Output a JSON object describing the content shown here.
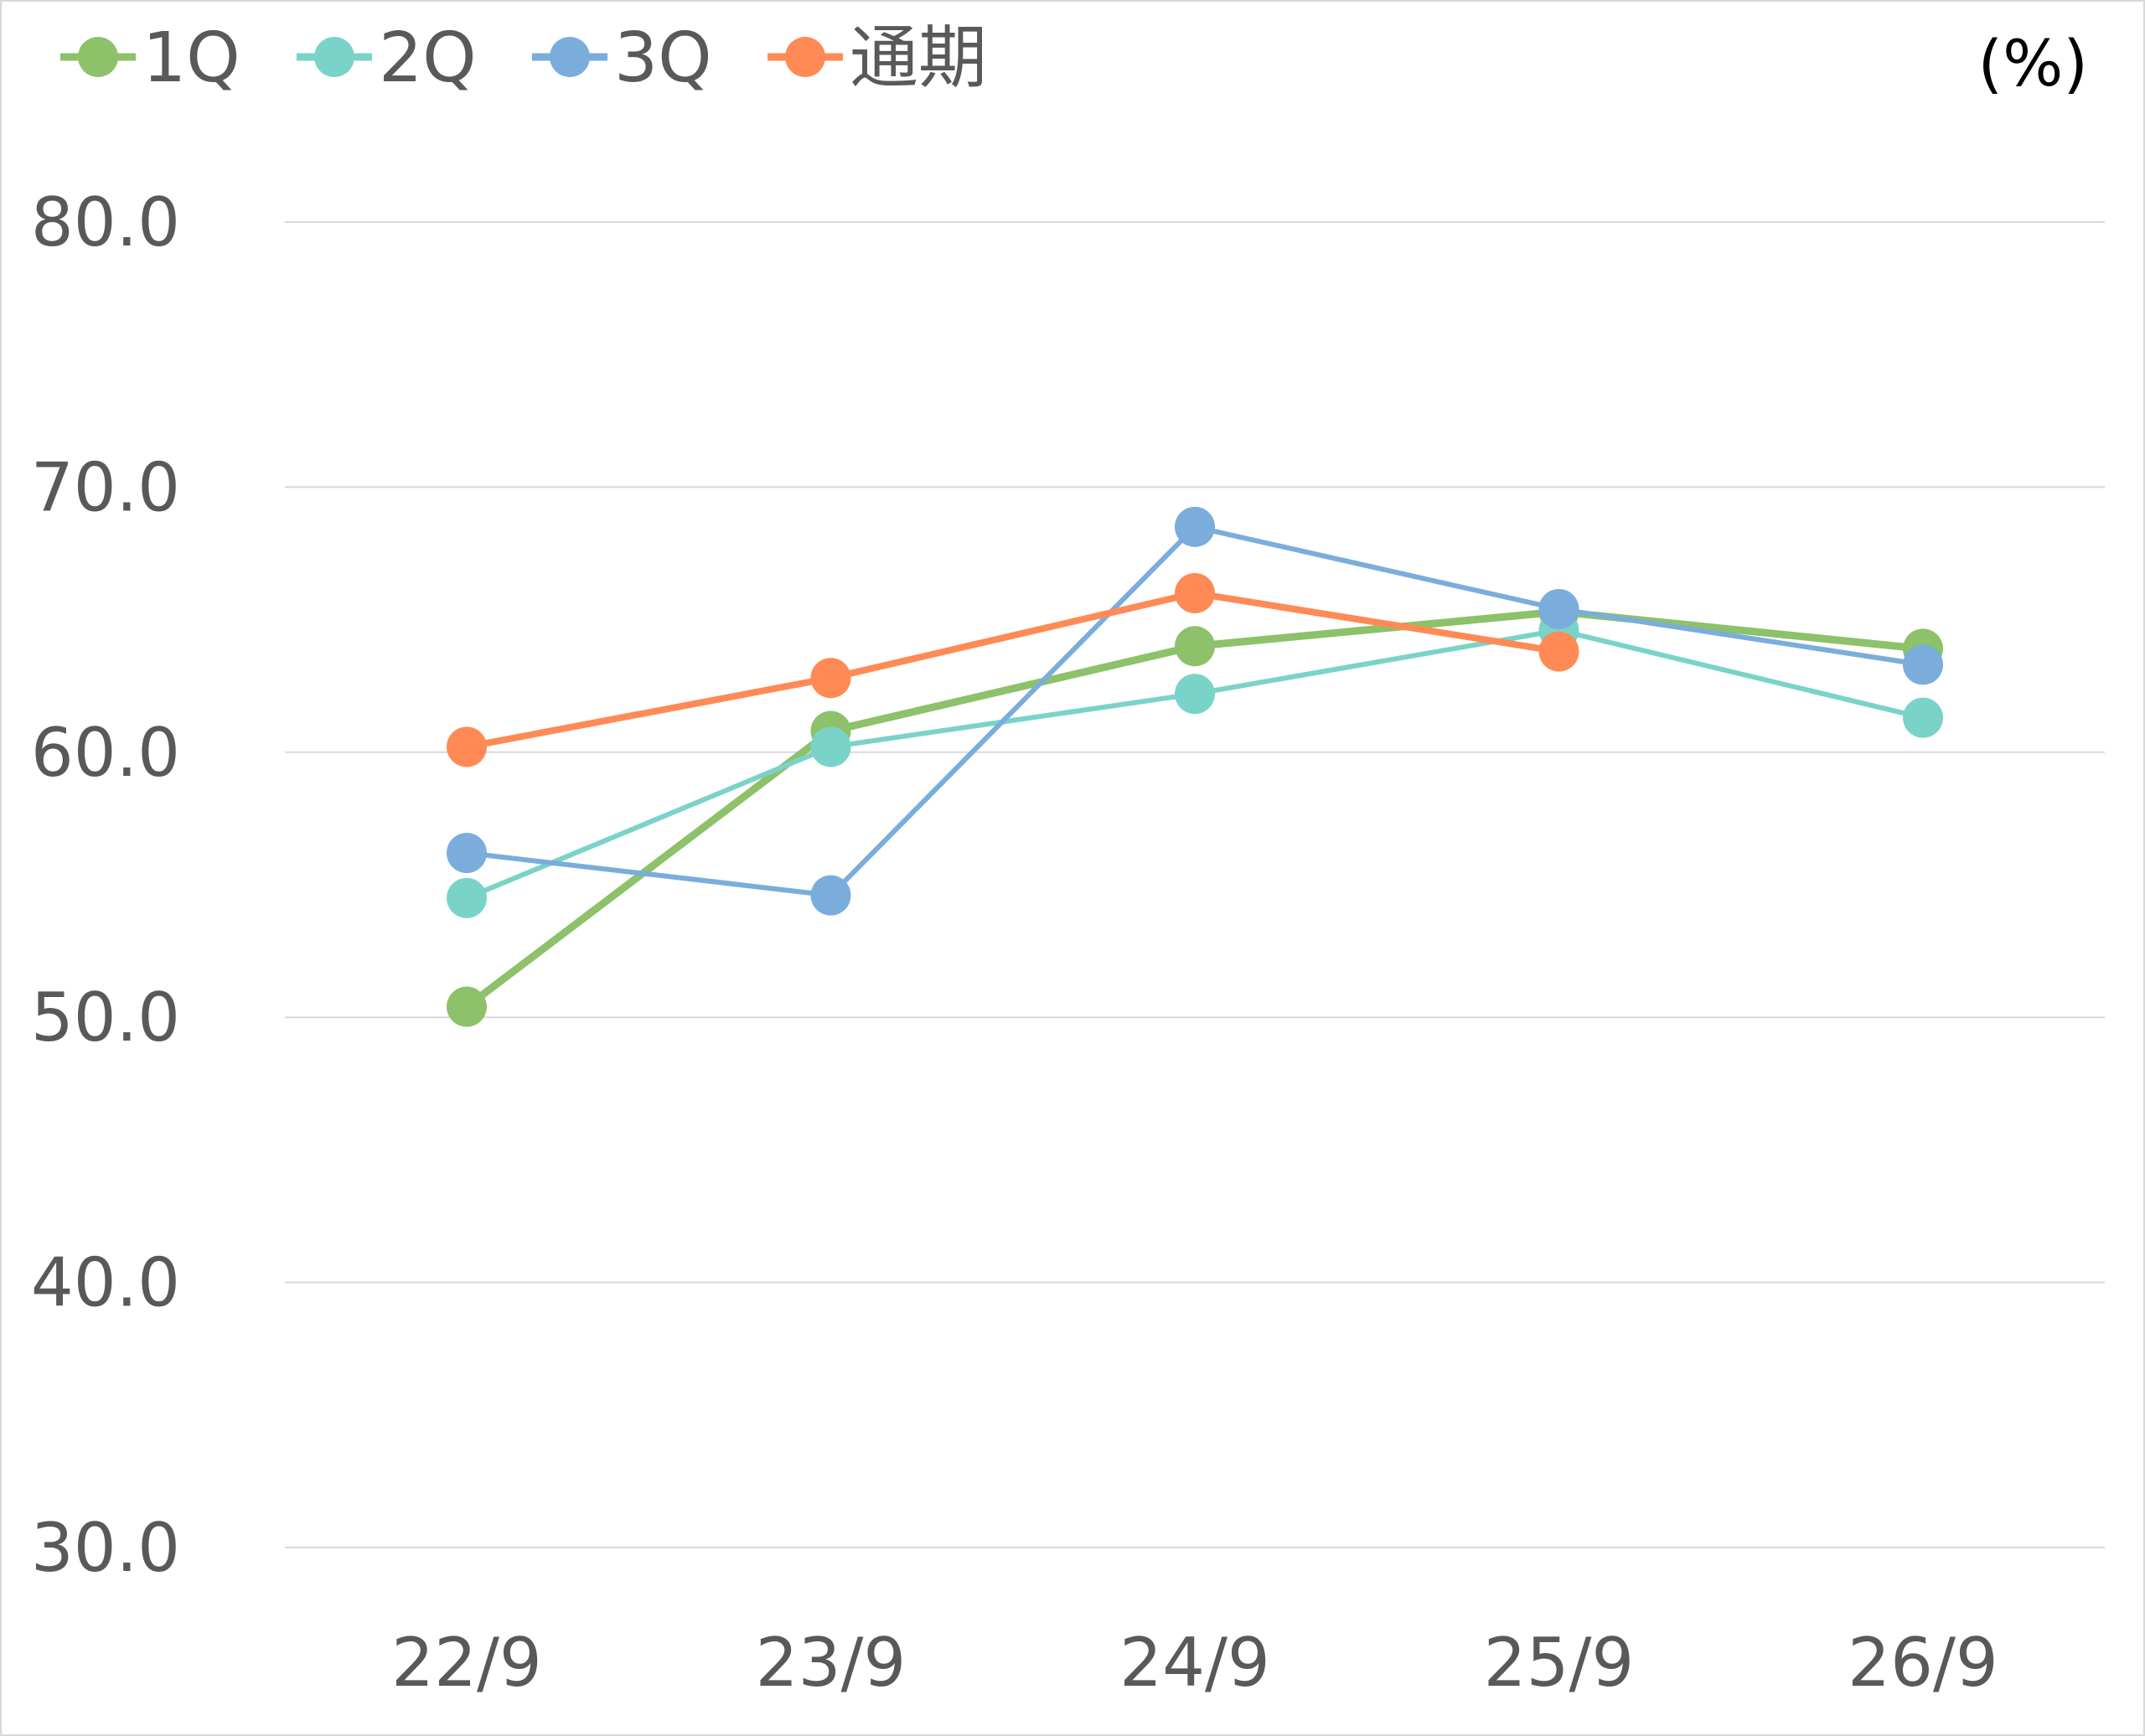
{
  "chart_data": {
    "type": "line",
    "unit": "(%)",
    "categories": [
      "22/9",
      "23/9",
      "24/9",
      "25/9",
      "26/9"
    ],
    "y_ticks": [
      "30.0",
      "40.0",
      "50.0",
      "60.0",
      "70.0",
      "80.0"
    ],
    "ylim": [
      30,
      80
    ],
    "grid": true,
    "legend_position": "top-left",
    "series": [
      {
        "name": "1Q",
        "color": "#8dc16a",
        "values": [
          50.4,
          60.8,
          64.0,
          65.3,
          63.9
        ]
      },
      {
        "name": "2Q",
        "color": "#7ad3c8",
        "values": [
          54.5,
          60.2,
          62.2,
          64.6,
          61.3
        ]
      },
      {
        "name": "3Q",
        "color": "#7aaddc",
        "values": [
          56.2,
          54.6,
          68.5,
          65.4,
          63.3
        ]
      },
      {
        "name": "通期",
        "color": "#ff8a56",
        "values": [
          60.2,
          62.8,
          66.0,
          63.8,
          null
        ]
      }
    ]
  }
}
